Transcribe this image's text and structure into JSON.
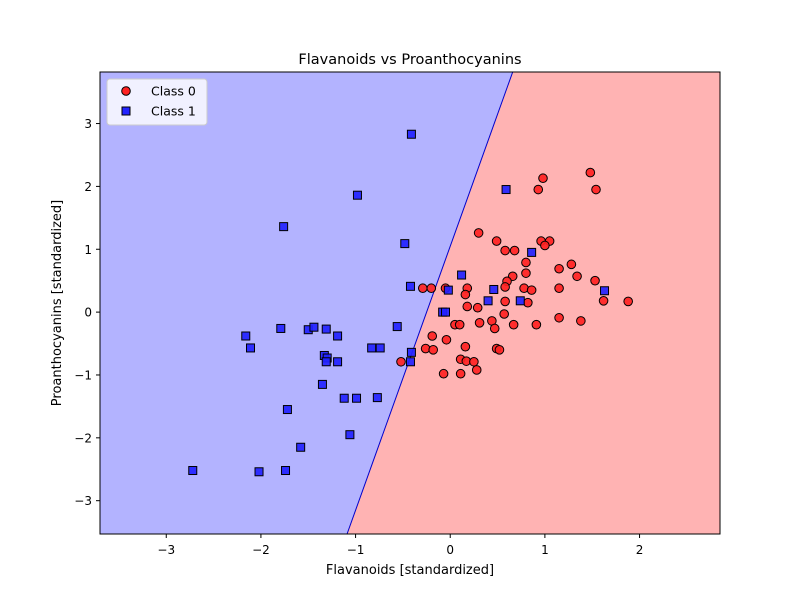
{
  "chart_data": {
    "type": "scatter",
    "title": "Flavanoids vs Proanthocyanins",
    "xlabel": "Flavanoids [standardized]",
    "ylabel": "Proanthocyanins [standardized]",
    "xlim": [
      -3.7,
      2.85
    ],
    "ylim": [
      -3.53,
      3.82
    ],
    "x_ticks": [
      -3,
      -2,
      -1,
      0,
      1,
      2
    ],
    "y_ticks": [
      -3,
      -2,
      -1,
      0,
      1,
      2,
      3
    ],
    "x_tick_labels": [
      "−3",
      "−2",
      "−1",
      "0",
      "1",
      "2"
    ],
    "y_tick_labels": [
      "−3",
      "−2",
      "−1",
      "0",
      "1",
      "2",
      "3"
    ],
    "grid": false,
    "legend_position": "top-left",
    "decision_boundary": {
      "points": [
        [
          -1.09,
          -3.53
        ],
        [
          0.66,
          3.82
        ]
      ],
      "colors": {
        "left": "#b3b3ff",
        "right": "#ffb3b3",
        "line": "#0000cc"
      }
    },
    "series": [
      {
        "name": "Class 0",
        "marker": "circle",
        "color": "#ff2222",
        "edge": "#000000",
        "points": [
          [
            1.48,
            2.22
          ],
          [
            0.98,
            2.13
          ],
          [
            0.93,
            1.95
          ],
          [
            1.54,
            1.95
          ],
          [
            0.3,
            1.26
          ],
          [
            0.49,
            1.13
          ],
          [
            0.96,
            1.13
          ],
          [
            1.05,
            1.13
          ],
          [
            1.0,
            1.06
          ],
          [
            0.58,
            0.98
          ],
          [
            0.68,
            0.98
          ],
          [
            0.8,
            0.79
          ],
          [
            1.28,
            0.76
          ],
          [
            1.15,
            0.69
          ],
          [
            0.66,
            0.57
          ],
          [
            1.34,
            0.57
          ],
          [
            0.8,
            0.62
          ],
          [
            0.6,
            0.49
          ],
          [
            1.53,
            0.5
          ],
          [
            0.58,
            0.4
          ],
          [
            0.78,
            0.38
          ],
          [
            0.86,
            0.35
          ],
          [
            1.15,
            0.38
          ],
          [
            -0.29,
            0.38
          ],
          [
            -0.2,
            0.38
          ],
          [
            0.18,
            0.38
          ],
          [
            -0.05,
            0.38
          ],
          [
            0.16,
            0.28
          ],
          [
            1.62,
            0.18
          ],
          [
            1.88,
            0.17
          ],
          [
            0.58,
            0.17
          ],
          [
            0.82,
            0.15
          ],
          [
            0.18,
            0.09
          ],
          [
            0.29,
            0.07
          ],
          [
            0.57,
            -0.03
          ],
          [
            1.15,
            -0.09
          ],
          [
            1.38,
            -0.14
          ],
          [
            0.44,
            -0.14
          ],
          [
            0.31,
            -0.17
          ],
          [
            0.67,
            -0.2
          ],
          [
            0.91,
            -0.2
          ],
          [
            0.05,
            -0.2
          ],
          [
            0.1,
            -0.2
          ],
          [
            0.47,
            -0.26
          ],
          [
            -0.19,
            -0.38
          ],
          [
            -0.04,
            -0.44
          ],
          [
            0.16,
            -0.55
          ],
          [
            -0.26,
            -0.58
          ],
          [
            -0.18,
            -0.6
          ],
          [
            0.49,
            -0.58
          ],
          [
            0.52,
            -0.6
          ],
          [
            -0.52,
            -0.79
          ],
          [
            0.11,
            -0.75
          ],
          [
            0.17,
            -0.78
          ],
          [
            0.25,
            -0.79
          ],
          [
            0.28,
            -0.92
          ],
          [
            -0.07,
            -0.98
          ],
          [
            0.11,
            -0.98
          ]
        ]
      },
      {
        "name": "Class 1",
        "marker": "square",
        "color": "#2222ff",
        "edge": "#000000",
        "points": [
          [
            -0.41,
            2.83
          ],
          [
            0.59,
            1.95
          ],
          [
            -0.98,
            1.86
          ],
          [
            -1.76,
            1.36
          ],
          [
            -0.48,
            1.09
          ],
          [
            0.86,
            0.95
          ],
          [
            0.12,
            0.59
          ],
          [
            -0.42,
            0.41
          ],
          [
            0.46,
            0.36
          ],
          [
            -0.02,
            0.35
          ],
          [
            1.63,
            0.34
          ],
          [
            0.4,
            0.18
          ],
          [
            0.74,
            0.18
          ],
          [
            -0.08,
            0.0
          ],
          [
            -0.05,
            0.0
          ],
          [
            -1.79,
            -0.26
          ],
          [
            -1.5,
            -0.28
          ],
          [
            -1.44,
            -0.24
          ],
          [
            -1.31,
            -0.27
          ],
          [
            -0.56,
            -0.23
          ],
          [
            -2.16,
            -0.38
          ],
          [
            -2.11,
            -0.57
          ],
          [
            -1.19,
            -0.38
          ],
          [
            -0.83,
            -0.57
          ],
          [
            -0.74,
            -0.57
          ],
          [
            -0.41,
            -0.64
          ],
          [
            -1.33,
            -0.69
          ],
          [
            -1.3,
            -0.73
          ],
          [
            -1.31,
            -0.79
          ],
          [
            -1.19,
            -0.79
          ],
          [
            -0.42,
            -0.79
          ],
          [
            -1.35,
            -1.15
          ],
          [
            -1.12,
            -1.37
          ],
          [
            -0.99,
            -1.37
          ],
          [
            -0.77,
            -1.36
          ],
          [
            -1.72,
            -1.55
          ],
          [
            -1.06,
            -1.95
          ],
          [
            -1.58,
            -2.15
          ],
          [
            -2.72,
            -2.52
          ],
          [
            -2.02,
            -2.54
          ],
          [
            -1.74,
            -2.52
          ]
        ]
      }
    ]
  }
}
